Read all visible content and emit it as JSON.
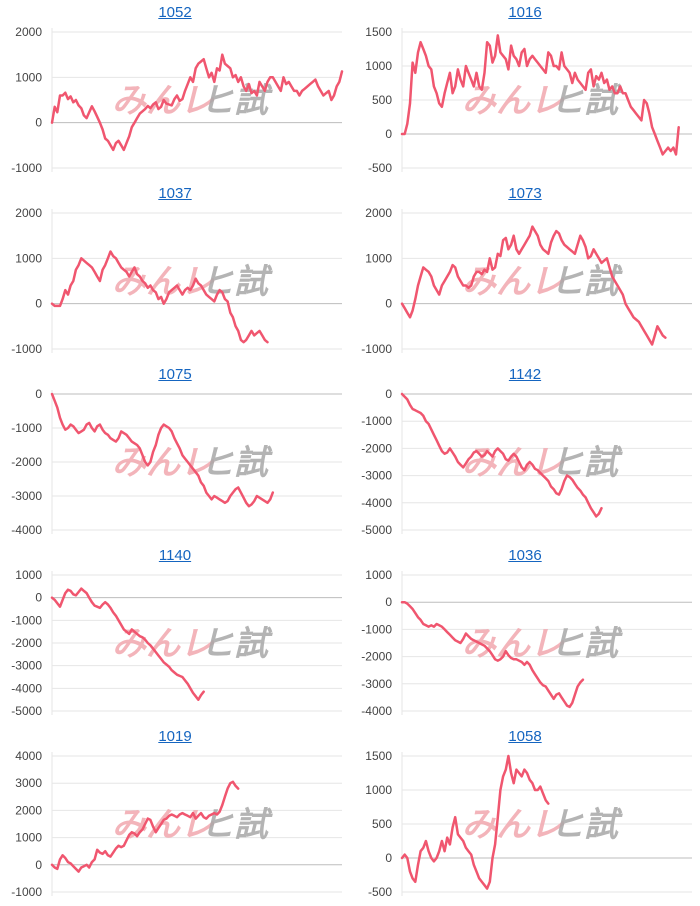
{
  "colors": {
    "line": "#f0566f",
    "grid": "#e6e6e6",
    "zero": "#bdbdbd",
    "tick": "#444444",
    "title": "#1565c0"
  },
  "watermark": {
    "left_text": "みんレ",
    "right_text": "ヒ試",
    "left_color": "#f2a7ae",
    "right_color": "#a8a8a8"
  },
  "chart_data": [
    {
      "type": "line",
      "title": "1052",
      "yticks": [
        2000,
        1000,
        0,
        -1000
      ],
      "ylim": [
        -1000,
        2000
      ],
      "x_count": 110,
      "series": [
        {
          "name": "1052",
          "values": [
            0,
            350,
            230,
            600,
            600,
            660,
            520,
            580,
            450,
            500,
            380,
            320,
            160,
            100,
            230,
            360,
            250,
            130,
            0,
            -150,
            -350,
            -400,
            -500,
            -600,
            -450,
            -400,
            -500,
            -600,
            -450,
            -300,
            -100,
            0,
            100,
            200,
            250,
            300,
            370,
            320,
            400,
            450,
            300,
            350,
            500,
            420,
            400,
            380,
            520,
            600,
            480,
            520,
            700,
            850,
            1000,
            900,
            1200,
            1300,
            1350,
            1400,
            1200,
            1000,
            1100,
            900,
            1200,
            1150,
            1500,
            1300,
            1250,
            1200,
            1000,
            1050,
            900,
            1000,
            800,
            700,
            850,
            650,
            700,
            600,
            900,
            800,
            700,
            900,
            1000,
            1000,
            900,
            800,
            700,
            1000,
            850,
            900,
            800,
            700,
            700,
            600,
            700,
            750,
            800,
            850,
            900,
            950,
            800,
            700,
            600,
            650,
            700,
            500,
            600,
            800,
            900,
            1130
          ]
        }
      ]
    },
    {
      "type": "line",
      "title": "1016",
      "yticks": [
        1500,
        1000,
        500,
        0,
        -500
      ],
      "ylim": [
        -500,
        1500
      ],
      "x_count": 110,
      "series": [
        {
          "name": "1016",
          "values": [
            0,
            0,
            150,
            450,
            1050,
            900,
            1200,
            1350,
            1250,
            1150,
            1000,
            950,
            700,
            600,
            450,
            400,
            600,
            750,
            900,
            600,
            700,
            950,
            800,
            700,
            1000,
            900,
            800,
            700,
            900,
            700,
            650,
            900,
            1350,
            1300,
            1050,
            1150,
            1450,
            1200,
            1150,
            1100,
            950,
            1300,
            1150,
            1100,
            1000,
            1200,
            1250,
            1000,
            1100,
            1150,
            1100,
            1050,
            1000,
            950,
            900,
            1200,
            1150,
            1000,
            1000,
            950,
            1200,
            1000,
            950,
            900,
            750,
            900,
            800,
            750,
            700,
            650,
            900,
            950,
            700,
            850,
            800,
            900,
            750,
            800,
            650,
            700,
            600,
            600,
            700,
            600,
            600,
            500,
            400,
            350,
            300,
            250,
            200,
            500,
            450,
            300,
            100,
            0,
            -100,
            -200,
            -300,
            -250,
            -200,
            -250,
            -200,
            -300,
            100
          ]
        }
      ]
    },
    {
      "type": "line",
      "title": "1037",
      "yticks": [
        2000,
        1000,
        0,
        -1000
      ],
      "ylim": [
        -1000,
        2000
      ],
      "x_count": 110,
      "series": [
        {
          "name": "1037",
          "values": [
            0,
            -50,
            -50,
            -50,
            100,
            300,
            200,
            400,
            500,
            750,
            850,
            1000,
            950,
            900,
            850,
            800,
            700,
            600,
            500,
            750,
            850,
            1000,
            1150,
            1050,
            1000,
            900,
            800,
            750,
            700,
            600,
            700,
            800,
            650,
            600,
            500,
            450,
            350,
            400,
            300,
            250,
            100,
            150,
            0,
            100,
            250,
            300,
            350,
            400,
            300,
            200,
            300,
            350,
            300,
            400,
            550,
            450,
            400,
            300,
            200,
            150,
            100,
            50,
            200,
            300,
            250,
            100,
            50,
            -200,
            -300,
            -500,
            -600,
            -800,
            -850,
            -800,
            -700,
            -600,
            -700,
            -650,
            -600,
            -700,
            -800,
            -850
          ]
        }
      ]
    },
    {
      "type": "line",
      "title": "1073",
      "yticks": [
        2000,
        1000,
        0,
        -1000
      ],
      "ylim": [
        -1000,
        2000
      ],
      "x_count": 110,
      "series": [
        {
          "name": "1073",
          "values": [
            0,
            -100,
            -200,
            -300,
            -150,
            100,
            400,
            600,
            800,
            750,
            700,
            600,
            400,
            300,
            200,
            400,
            500,
            600,
            700,
            850,
            800,
            600,
            500,
            400,
            400,
            350,
            400,
            600,
            700,
            700,
            650,
            750,
            700,
            1000,
            750,
            800,
            1100,
            1050,
            1400,
            1450,
            1200,
            1300,
            1500,
            1200,
            1100,
            1200,
            1300,
            1400,
            1500,
            1700,
            1600,
            1500,
            1300,
            1200,
            1150,
            1100,
            1350,
            1500,
            1600,
            1550,
            1400,
            1300,
            1250,
            1200,
            1150,
            1100,
            1300,
            1500,
            1400,
            1250,
            1000,
            1050,
            1200,
            1100,
            1000,
            900,
            950,
            1000,
            800,
            600,
            500,
            400,
            300,
            200,
            0,
            -100,
            -200,
            -300,
            -350,
            -400,
            -500,
            -600,
            -700,
            -800,
            -900,
            -700,
            -500,
            -600,
            -700,
            -750
          ]
        }
      ]
    },
    {
      "type": "line",
      "title": "1075",
      "yticks": [
        0,
        -1000,
        -2000,
        -3000,
        -4000
      ],
      "ylim": [
        -4000,
        0
      ],
      "x_count": 110,
      "series": [
        {
          "name": "1075",
          "values": [
            0,
            -200,
            -400,
            -700,
            -900,
            -1050,
            -1000,
            -900,
            -950,
            -1050,
            -1150,
            -1100,
            -1050,
            -900,
            -850,
            -1000,
            -1100,
            -950,
            -900,
            -1050,
            -1150,
            -1200,
            -1300,
            -1350,
            -1400,
            -1300,
            -1100,
            -1150,
            -1200,
            -1300,
            -1400,
            -1450,
            -1500,
            -1600,
            -1800,
            -2000,
            -2100,
            -2000,
            -1700,
            -1500,
            -1200,
            -1000,
            -900,
            -950,
            -1000,
            -1100,
            -1300,
            -1450,
            -1600,
            -1800,
            -1900,
            -2000,
            -2100,
            -2200,
            -2300,
            -2400,
            -2600,
            -2700,
            -2900,
            -3000,
            -3100,
            -3000,
            -3050,
            -3100,
            -3150,
            -3200,
            -3150,
            -3000,
            -2900,
            -2800,
            -2750,
            -2900,
            -3050,
            -3200,
            -3300,
            -3250,
            -3150,
            -3000,
            -3050,
            -3100,
            -3150,
            -3200,
            -3100,
            -2900
          ]
        }
      ]
    },
    {
      "type": "line",
      "title": "1142",
      "yticks": [
        0,
        -1000,
        -2000,
        -3000,
        -4000,
        -5000
      ],
      "ylim": [
        -5000,
        0
      ],
      "x_count": 110,
      "series": [
        {
          "name": "1142",
          "values": [
            0,
            -100,
            -200,
            -400,
            -550,
            -600,
            -650,
            -700,
            -800,
            -1000,
            -1100,
            -1300,
            -1500,
            -1700,
            -1900,
            -2100,
            -2200,
            -2150,
            -2000,
            -2150,
            -2300,
            -2500,
            -2600,
            -2700,
            -2550,
            -2400,
            -2300,
            -2150,
            -2100,
            -2200,
            -2300,
            -2250,
            -2100,
            -2200,
            -2300,
            -2100,
            -2000,
            -2100,
            -2200,
            -2400,
            -2450,
            -2300,
            -2200,
            -2300,
            -2500,
            -2700,
            -2800,
            -2600,
            -2500,
            -2600,
            -2750,
            -2800,
            -2900,
            -3000,
            -3100,
            -3200,
            -3400,
            -3500,
            -3650,
            -3700,
            -3500,
            -3200,
            -3000,
            -3050,
            -3150,
            -3300,
            -3450,
            -3550,
            -3700,
            -3800,
            -4000,
            -4200,
            -4350,
            -4500,
            -4400,
            -4200
          ]
        }
      ]
    },
    {
      "type": "line",
      "title": "1140",
      "yticks": [
        1000,
        0,
        -1000,
        -2000,
        -3000,
        -4000,
        -5000
      ],
      "ylim": [
        -5000,
        1000
      ],
      "x_count": 110,
      "series": [
        {
          "name": "1140",
          "values": [
            0,
            -100,
            -250,
            -400,
            -100,
            200,
            350,
            300,
            150,
            100,
            250,
            400,
            300,
            200,
            0,
            -200,
            -350,
            -400,
            -450,
            -300,
            -200,
            -300,
            -450,
            -650,
            -800,
            -1000,
            -1200,
            -1400,
            -1500,
            -1600,
            -1400,
            -1500,
            -1600,
            -1700,
            -1750,
            -1850,
            -2000,
            -2100,
            -2250,
            -2400,
            -2550,
            -2700,
            -2850,
            -2950,
            -3050,
            -3200,
            -3300,
            -3400,
            -3450,
            -3500,
            -3650,
            -3800,
            -4000,
            -4200,
            -4350,
            -4500,
            -4300,
            -4150
          ]
        }
      ]
    },
    {
      "type": "line",
      "title": "1036",
      "yticks": [
        1000,
        0,
        -1000,
        -2000,
        -3000,
        -4000
      ],
      "ylim": [
        -4000,
        1000
      ],
      "x_count": 110,
      "series": [
        {
          "name": "1036",
          "values": [
            0,
            0,
            -50,
            -150,
            -250,
            -400,
            -550,
            -650,
            -800,
            -850,
            -900,
            -850,
            -900,
            -800,
            -850,
            -900,
            -1000,
            -1100,
            -1200,
            -1300,
            -1400,
            -1450,
            -1500,
            -1350,
            -1150,
            -1250,
            -1350,
            -1400,
            -1450,
            -1500,
            -1550,
            -1600,
            -1700,
            -1800,
            -1950,
            -2100,
            -2150,
            -2100,
            -2000,
            -1800,
            -1950,
            -2050,
            -2100,
            -2100,
            -2150,
            -2200,
            -2300,
            -2200,
            -2300,
            -2500,
            -2650,
            -2800,
            -2950,
            -3050,
            -3100,
            -3250,
            -3400,
            -3550,
            -3400,
            -3350,
            -3500,
            -3650,
            -3800,
            -3850,
            -3700,
            -3400,
            -3100,
            -2950,
            -2850
          ]
        }
      ]
    },
    {
      "type": "line",
      "title": "1019",
      "yticks": [
        4000,
        3000,
        2000,
        1000,
        0,
        -1000
      ],
      "ylim": [
        -1000,
        4000
      ],
      "x_count": 110,
      "series": [
        {
          "name": "1019",
          "values": [
            0,
            -100,
            -150,
            200,
            350,
            250,
            100,
            50,
            -50,
            -150,
            -250,
            -100,
            -50,
            0,
            -100,
            100,
            200,
            550,
            450,
            400,
            500,
            350,
            300,
            450,
            600,
            700,
            650,
            700,
            900,
            1100,
            1200,
            1150,
            1050,
            1200,
            1300,
            1500,
            1700,
            1650,
            1400,
            1200,
            1350,
            1500,
            1650,
            1700,
            1800,
            1850,
            1800,
            1750,
            1850,
            1900,
            1850,
            1800,
            1750,
            1900,
            1700,
            1800,
            1900,
            1750,
            1700,
            1800,
            1850,
            1900,
            1850,
            1950,
            2200,
            2500,
            2800,
            3000,
            3050,
            2900,
            2800
          ]
        }
      ]
    },
    {
      "type": "line",
      "title": "1058",
      "yticks": [
        1500,
        1000,
        500,
        0,
        -500
      ],
      "ylim": [
        -500,
        1500
      ],
      "x_count": 110,
      "series": [
        {
          "name": "1058",
          "values": [
            0,
            50,
            0,
            -200,
            -300,
            -350,
            -100,
            100,
            150,
            250,
            100,
            0,
            -50,
            0,
            100,
            250,
            100,
            300,
            200,
            450,
            600,
            350,
            300,
            250,
            150,
            100,
            50,
            -100,
            -200,
            -300,
            -350,
            -400,
            -450,
            -350,
            0,
            200,
            600,
            1000,
            1200,
            1300,
            1500,
            1250,
            1100,
            1300,
            1250,
            1200,
            1300,
            1250,
            1150,
            1100,
            1000,
            1000,
            1050,
            950,
            850,
            800
          ]
        }
      ]
    }
  ]
}
